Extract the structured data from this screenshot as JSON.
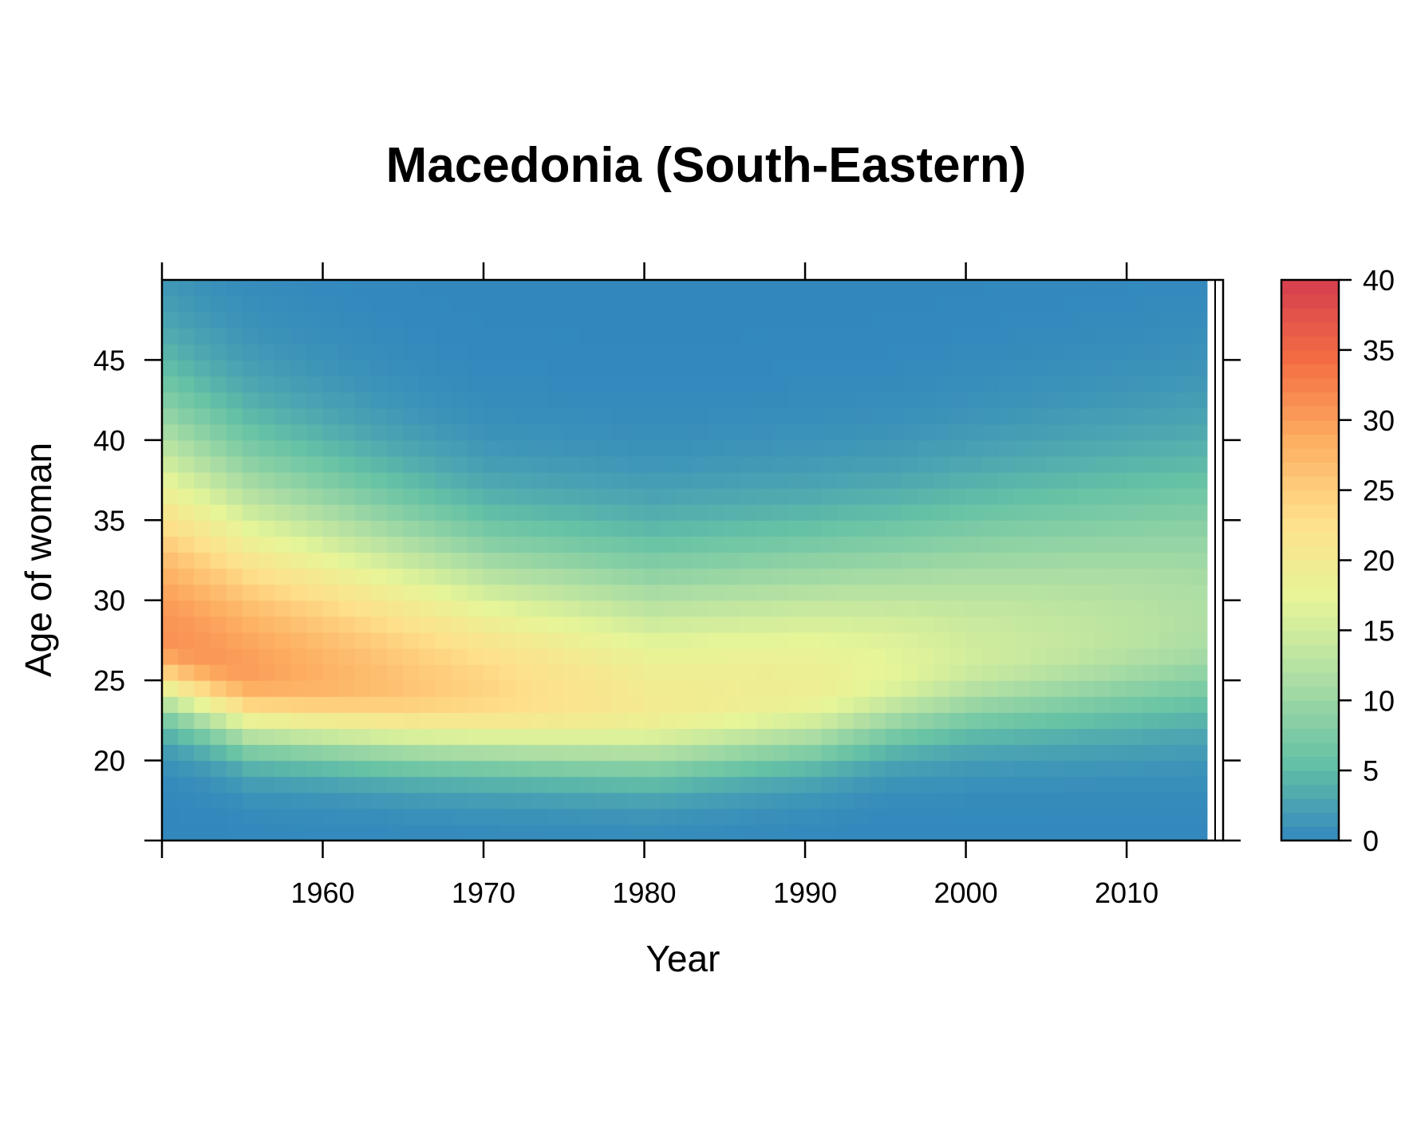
{
  "chart_data": {
    "type": "heatmap",
    "title": "Macedonia (South-Eastern)",
    "xlabel": "Year",
    "ylabel": "Age of woman",
    "xlim": [
      1950,
      2016
    ],
    "ylim": [
      15,
      50
    ],
    "x_range": [
      1950,
      2014
    ],
    "y_range": [
      15,
      49
    ],
    "x_ticks": [
      "1960",
      "1970",
      "1980",
      "1990",
      "2000",
      "2010"
    ],
    "y_ticks": [
      "20",
      "25",
      "30",
      "35",
      "40",
      "45"
    ],
    "colorbar": {
      "ticks": [
        "0",
        "5",
        "10",
        "15",
        "20",
        "25",
        "30",
        "35",
        "40"
      ],
      "range": [
        0,
        40
      ],
      "colors": [
        "#3288bd",
        "#66c2a5",
        "#abdda4",
        "#e6f598",
        "#fee08b",
        "#fdae61",
        "#f46d43",
        "#d53e4f"
      ]
    },
    "value_summary": {
      "description_points": [
        {
          "year": 1950,
          "peak_age": 27,
          "peak_value": 31
        },
        {
          "year": 1955,
          "peak_age": 25,
          "peak_value": 30
        },
        {
          "year": 1965,
          "peak_age": 24,
          "peak_value": 26
        },
        {
          "year": 1980,
          "peak_age": 23,
          "peak_value": 20
        },
        {
          "year": 1990,
          "peak_age": 24,
          "peak_value": 19
        },
        {
          "year": 2000,
          "peak_age": 26,
          "peak_value": 15
        },
        {
          "year": 2014,
          "peak_age": 28,
          "peak_value": 12
        }
      ]
    }
  }
}
